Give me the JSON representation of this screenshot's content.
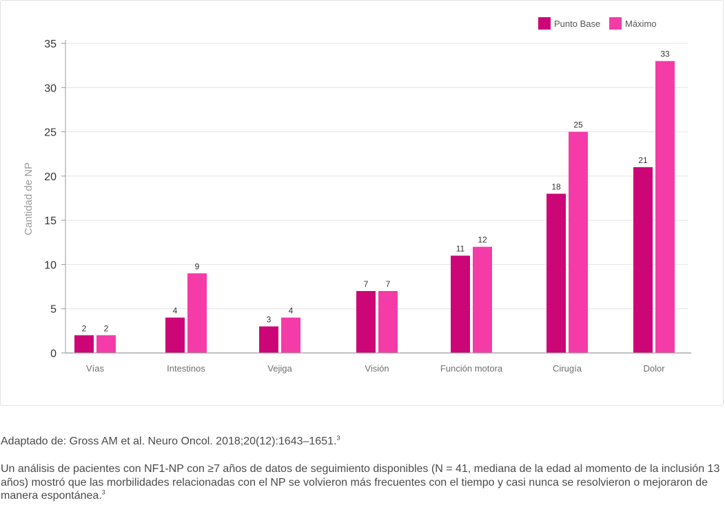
{
  "chart_data": {
    "type": "bar",
    "ylabel": "Cantidad de NP",
    "xlabel": "",
    "ylim": [
      0,
      35
    ],
    "yticks": [
      0,
      5,
      10,
      15,
      20,
      25,
      30,
      35
    ],
    "grid": true,
    "legend_position": "top-right",
    "categories": [
      "Vías",
      "Intestinos",
      "Vejiga",
      "Visión",
      "Función motora",
      "Cirugía",
      "Dolor"
    ],
    "series": [
      {
        "name": "Punto Base",
        "color": "#cc0677",
        "values": [
          2,
          4,
          3,
          7,
          11,
          18,
          21
        ]
      },
      {
        "name": "Máximo",
        "color": "#f43ba8",
        "values": [
          2,
          9,
          4,
          7,
          12,
          25,
          33
        ]
      }
    ],
    "data_labels": true
  },
  "footer": {
    "source_text": "Adaptado de: Gross AM et al. Neuro Oncol. 2018;20(12):1643–1651.",
    "source_ref": "3",
    "description_text": "Un análisis de pacientes con NF1-NP con ≥7 años de datos de seguimiento disponibles (N = 41, mediana de la edad al momento de la inclusión 13 años) mostró que las morbilidades relacionadas con el NP se volvieron más frecuentes con el tiempo y casi nunca se resolvieron o mejoraron de manera espontánea.",
    "description_ref": "3"
  }
}
